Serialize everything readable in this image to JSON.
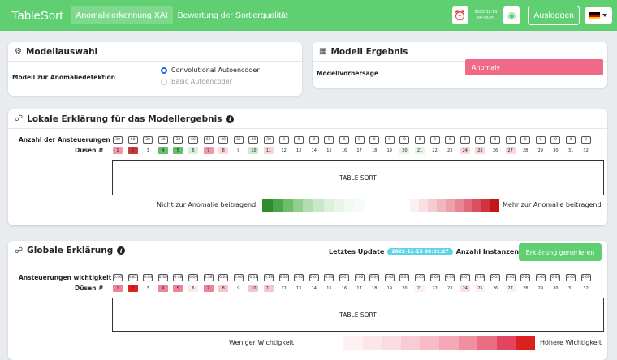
{
  "nav": {
    "brand": "TableSort",
    "links": [
      "Anomalieerkennung XAI",
      "Bewertung der Sortierqualität"
    ],
    "date": "2022-11-15",
    "time": "09:59:22",
    "logout": "Ausloggen"
  },
  "model_select": {
    "title": "Modellauswahl",
    "label": "Modell zur Anomaliedetektion",
    "options": [
      "Convolutional Autoencoder",
      "Basic Autoencoder"
    ],
    "selected": 0
  },
  "model_result": {
    "title": "Modell Ergebnis",
    "label": "Modellvorhersage",
    "value": "Anomaly"
  },
  "local": {
    "title": "Lokale Erklärung für das Modellergebnis",
    "row1_label": "Anzahl der Ansteuerungen",
    "row2_label": "Düsen #",
    "counts": [
      "30",
      "60",
      "30",
      "30",
      "30",
      "60",
      "60",
      "30",
      "30",
      "30",
      "30",
      "0",
      "0",
      "0",
      "0",
      "0",
      "0",
      "0",
      "0",
      "0",
      "0",
      "0",
      "0",
      "0",
      "0",
      "0",
      "0",
      "0",
      "0",
      "0",
      "0",
      "0"
    ],
    "nozzles": [
      "1",
      "2",
      "3",
      "4",
      "5",
      "6",
      "7",
      "8",
      "9",
      "10",
      "11",
      "12",
      "13",
      "14",
      "15",
      "16",
      "17",
      "18",
      "19",
      "20",
      "21",
      "22",
      "23",
      "24",
      "25",
      "26",
      "27",
      "28",
      "29",
      "30",
      "31",
      "32"
    ],
    "nozzle_colors": [
      "#ee9aa6",
      "#c73a3a",
      "#ffffff",
      "#5fbf6a",
      "#5fbf6a",
      "#d8efd9",
      "#ee9aa6",
      "#f8d6da",
      "#ffffff",
      "#cfead0",
      "#f8d6da",
      "#ffffff",
      "#ffffff",
      "#ffffff",
      "#ffffff",
      "#ffffff",
      "#ffffff",
      "#ffffff",
      "#ffffff",
      "#e6f4e6",
      "#e6f4e6",
      "#ffffff",
      "#ffffff",
      "#f8d6da",
      "#f8d6da",
      "#ffffff",
      "#f8d6da",
      "#ffffff",
      "#ffffff",
      "#ffffff",
      "#ffffff",
      "#ffffff"
    ],
    "table": "TABLE SORT",
    "legend_left": "Nicht zur Anomalie beitragend",
    "legend_right": "Mehr zur Anomalie beitragend",
    "legend_green": [
      "#2e8b2e",
      "#4aa64a",
      "#6dbd6d",
      "#90cf90",
      "#b1ddb1",
      "#c9e8c9",
      "#dcf0dc",
      "#e8f5e8",
      "#f1f9f1",
      "#f7fbf7"
    ],
    "legend_red": [
      "#fbf0f1",
      "#f7dfe2",
      "#f3ccd1",
      "#efb7be",
      "#eca0aa",
      "#e88594",
      "#e06a7b",
      "#d94f5e",
      "#cf3240",
      "#c01818"
    ]
  },
  "global": {
    "title": "Globale Erklärung",
    "update_label": "Letztes Update",
    "update_value": "2022-11-15 09:01:27",
    "instances_label": "Anzahl Instanzen:",
    "instances_value": "0",
    "generate": "Erklärung generieren",
    "row1_label": "Ansteuerungen wichtigkeit",
    "row2_label": "Düsen #",
    "importance": [
      "0.46",
      "0.85",
      "0.04",
      "0.38",
      "0.46",
      "0.09",
      "0.38",
      "0.20",
      "0.00",
      "0.18",
      "0.19",
      "0.00",
      "0.00",
      "0.01",
      "0.00",
      "0.01",
      "0.02",
      "0.00",
      "0.02",
      "0.03",
      "0.05",
      "0.00",
      "0.00",
      "0.07",
      "0.04",
      "0.02",
      "0.05",
      "0.00",
      "0.00",
      "0.00",
      "0.00",
      "0.00"
    ],
    "nozzle_colors": [
      "#ee8296",
      "#dc1f1f",
      "#ffffff",
      "#ee8296",
      "#ee8296",
      "#fbe9ec",
      "#ee8296",
      "#f6c6cf",
      "#ffffff",
      "#f6c6cf",
      "#f6c6cf",
      "#ffffff",
      "#ffffff",
      "#ffffff",
      "#ffffff",
      "#ffffff",
      "#ffffff",
      "#ffffff",
      "#ffffff",
      "#ffffff",
      "#fdf0f2",
      "#ffffff",
      "#ffffff",
      "#fbe0e5",
      "#fdf0f2",
      "#ffffff",
      "#fdf0f2",
      "#ffffff",
      "#ffffff",
      "#ffffff",
      "#ffffff",
      "#ffffff"
    ],
    "table": "TABLE SORT",
    "legend_left": "Weniger Wichtigkeit",
    "legend_right": "Höhere Wichtigkeit",
    "legend_red": [
      "#fdf1f3",
      "#fce6ea",
      "#fbdbe1",
      "#f9ccd5",
      "#f7bcc7",
      "#f4a8b7",
      "#f08ea2",
      "#ea6d84",
      "#e34560",
      "#dc1f1f"
    ]
  }
}
